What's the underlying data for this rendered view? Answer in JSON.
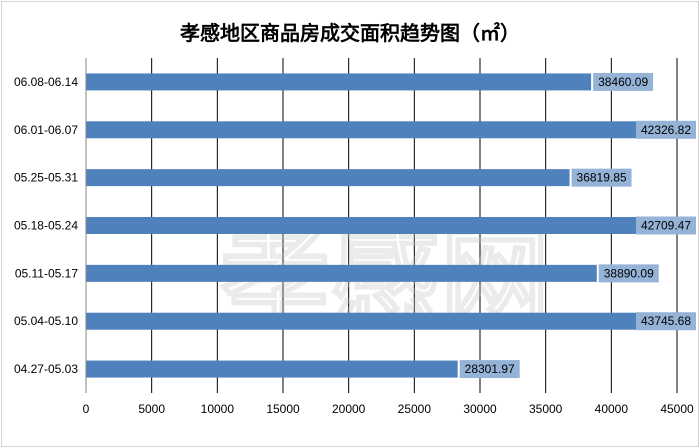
{
  "chart_data": {
    "type": "bar",
    "orientation": "horizontal",
    "title": "孝感地区商品房成交面积趋势图（㎡）",
    "categories": [
      "06.08-06.14",
      "06.01-06.07",
      "05.25-05.31",
      "05.18-05.24",
      "05.11-05.17",
      "05.04-05.10",
      "04.27-05.03"
    ],
    "values": [
      38460.09,
      42326.82,
      36819.85,
      42709.47,
      38890.09,
      43745.68,
      28301.97
    ],
    "data_labels": [
      "38460.09",
      "42326.82",
      "36819.85",
      "42709.47",
      "38890.09",
      "43745.68",
      "28301.97"
    ],
    "xlim": [
      0,
      45000
    ],
    "xticks": [
      "0",
      "5000",
      "10000",
      "15000",
      "20000",
      "25000",
      "30000",
      "35000",
      "40000",
      "45000"
    ],
    "grid": true,
    "bar_color": "#4f81bd",
    "label_box_color": "#95b3d7",
    "watermark": "孝感网"
  }
}
